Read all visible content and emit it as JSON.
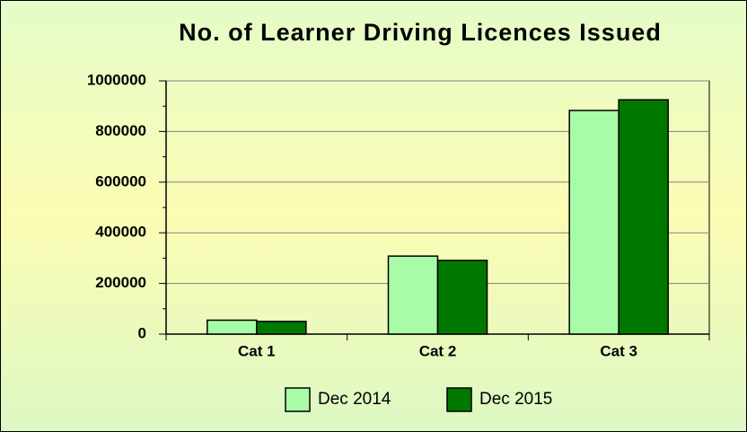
{
  "chart_data": {
    "type": "bar",
    "title": "No. of Learner Driving Licences Issued",
    "categories": [
      "Cat 1",
      "Cat 2",
      "Cat 3"
    ],
    "series": [
      {
        "name": "Dec 2014",
        "color": "#a8fca8",
        "values": [
          55000,
          308000,
          883000
        ]
      },
      {
        "name": "Dec 2015",
        "color": "#007800",
        "values": [
          50000,
          291000,
          925000
        ]
      }
    ],
    "ylim": [
      0,
      1000000
    ],
    "yticks": [
      0,
      200000,
      400000,
      600000,
      800000,
      1000000
    ],
    "grid": true,
    "legend": "bottom"
  }
}
